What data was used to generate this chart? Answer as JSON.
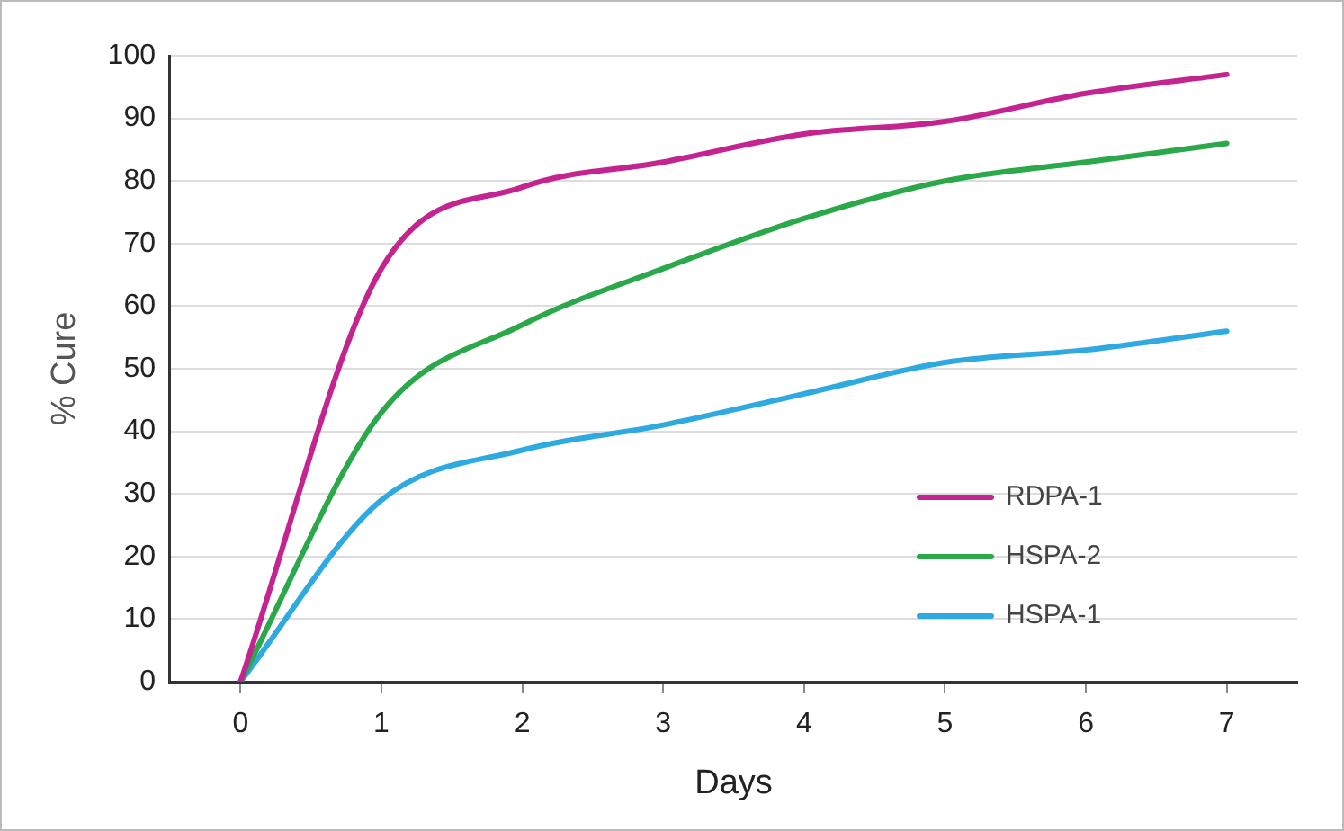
{
  "chart_data": {
    "type": "line",
    "xlabel": "Days",
    "ylabel": "% Cure",
    "x": [
      0,
      1,
      2,
      3,
      4,
      5,
      6,
      7
    ],
    "series": [
      {
        "name": "RDPA-1",
        "color": "#c4248f",
        "values": [
          0,
          66,
          79,
          83,
          87.5,
          89.5,
          94,
          97
        ]
      },
      {
        "name": "HSPA-2",
        "color": "#2ba84a",
        "values": [
          0,
          43,
          57,
          66,
          74,
          80,
          83,
          86
        ]
      },
      {
        "name": "HSPA-1",
        "color": "#2eaae1",
        "values": [
          0,
          29,
          37,
          41,
          46,
          51,
          53,
          56
        ]
      }
    ],
    "xlim": [
      -0.5,
      7.5
    ],
    "xticks": [
      0,
      1,
      2,
      3,
      4,
      5,
      6,
      7
    ],
    "ylim": [
      0,
      100
    ],
    "yticks": [
      0,
      10,
      20,
      30,
      40,
      50,
      60,
      70,
      80,
      90,
      100
    ],
    "grid": "y",
    "legend": "bottom right",
    "marker": "none",
    "line_style": "solid"
  }
}
